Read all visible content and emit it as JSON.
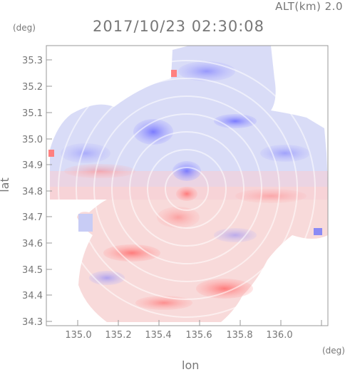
{
  "header": {
    "altitude_label": "ALT(km) 2.0",
    "timestamp": "2017/10/23 02:30:08"
  },
  "axes": {
    "y_unit": "(deg)",
    "x_unit": "(deg)",
    "y_label": "lat",
    "x_label": "lon",
    "x_ticks": [
      "135.0",
      "135.2",
      "135.4",
      "135.6",
      "135.8",
      "136.0"
    ],
    "y_ticks": [
      "35.3",
      "35.2",
      "35.1",
      "35.0",
      "34.9",
      "34.8",
      "34.7",
      "34.6",
      "34.5",
      "34.4",
      "34.3"
    ]
  },
  "colors": {
    "positive": "#ff7070",
    "negative": "#7070ff",
    "frame": "#999999"
  }
}
